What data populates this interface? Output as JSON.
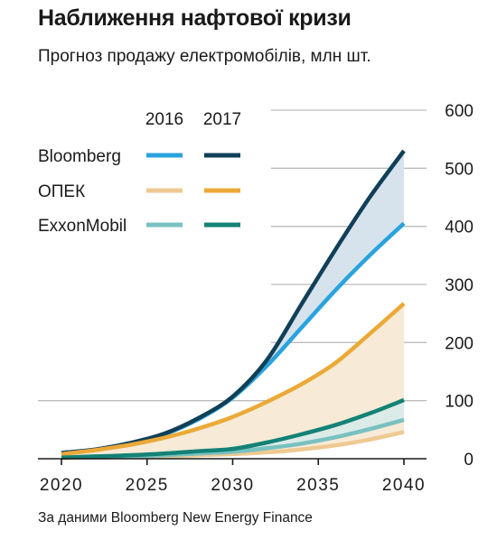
{
  "header": {
    "title": "Наближення нафтової кризи",
    "subtitle": "Прогноз продажу електромобілів, млн шт."
  },
  "footer": {
    "source": "За даними Bloomberg New Energy Finance"
  },
  "legend": {
    "year_labels": [
      "2016",
      "2017"
    ]
  },
  "colors": {
    "Bloomberg": {
      "2016": "#29a3dd",
      "2017": "#113f58",
      "band": "#d6e2ec"
    },
    "ОПЕК": {
      "2016": "#efc992",
      "2017": "#eba937",
      "band": "#f7ead6"
    },
    "ExxonMobil": {
      "2016": "#78c1c1",
      "2017": "#148276",
      "band": "#dbebe7"
    },
    "grid": "#bcbcbc",
    "axis": "#1a1a1a"
  },
  "chart_data": {
    "type": "line",
    "x": [
      2020,
      2022,
      2024,
      2026,
      2028,
      2030,
      2032,
      2034,
      2036,
      2038,
      2040
    ],
    "xticks": [
      2020,
      2025,
      2030,
      2035,
      2040
    ],
    "yticks": [
      0,
      100,
      200,
      300,
      400,
      500,
      600
    ],
    "xlim": [
      2020,
      2040
    ],
    "ylim": [
      0,
      600
    ],
    "grid": true,
    "legend_position": "top-left",
    "series": [
      {
        "name": "Bloomberg",
        "year": "2016",
        "values": [
          10,
          16,
          26,
          42,
          68,
          105,
          160,
          225,
          290,
          350,
          405
        ]
      },
      {
        "name": "Bloomberg",
        "year": "2017",
        "values": [
          10,
          16,
          27,
          43,
          70,
          107,
          170,
          265,
          360,
          450,
          530
        ]
      },
      {
        "name": "ОПЕК",
        "year": "2016",
        "values": [
          1,
          2,
          3,
          4,
          6,
          8,
          11,
          16,
          23,
          33,
          46
        ]
      },
      {
        "name": "ОПЕК",
        "year": "2017",
        "values": [
          8,
          15,
          24,
          36,
          52,
          72,
          98,
          128,
          165,
          215,
          267
        ]
      },
      {
        "name": "ExxonMobil",
        "year": "2016",
        "values": [
          2,
          3,
          4,
          6,
          9,
          12,
          18,
          26,
          37,
          51,
          67
        ]
      },
      {
        "name": "ExxonMobil",
        "year": "2017",
        "values": [
          2,
          4,
          6,
          9,
          13,
          17,
          28,
          42,
          58,
          78,
          101
        ]
      }
    ]
  }
}
